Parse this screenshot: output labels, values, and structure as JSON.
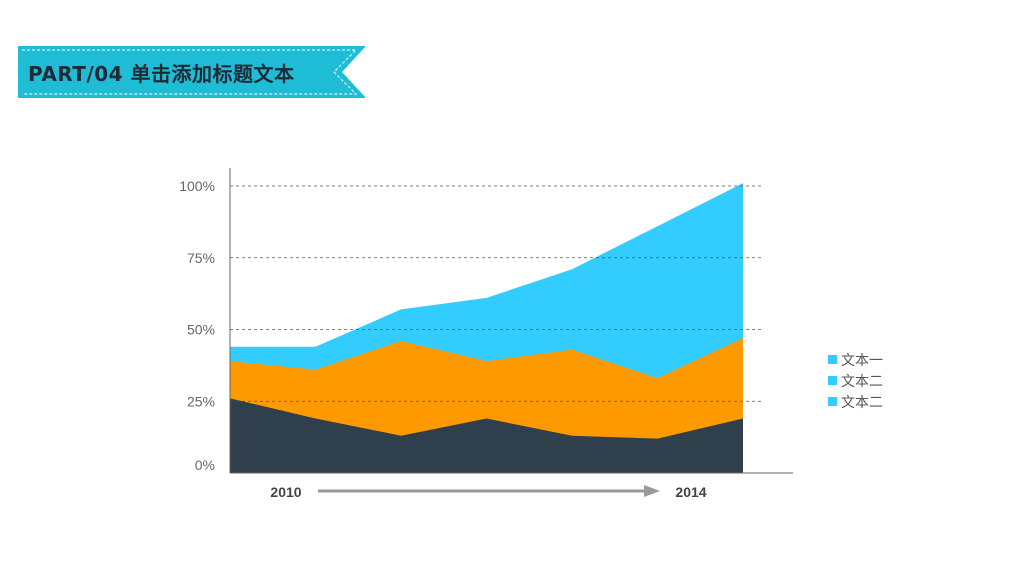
{
  "header": {
    "title": "PART/04 单击添加标题文本",
    "ribbon_color": "#1fbcd6"
  },
  "chart_data": {
    "type": "area",
    "stacked": false,
    "x": [
      1,
      2,
      3,
      4,
      5,
      6,
      7
    ],
    "ylim": [
      0,
      100
    ],
    "y_ticks": [
      "0%",
      "25%",
      "50%",
      "75%",
      "100%"
    ],
    "grid": "dashed-horizontal",
    "legend_position": "right",
    "series": [
      {
        "name": "文本一",
        "color": "#2f3f4c",
        "values": [
          26,
          19,
          13,
          19,
          13,
          12,
          19
        ]
      },
      {
        "name": "文本二",
        "color": "#ff9900",
        "values": [
          39,
          36,
          46,
          39,
          43,
          33,
          47
        ]
      },
      {
        "name": "文本二",
        "color": "#33ccff",
        "values": [
          44,
          44,
          57,
          61,
          71,
          86,
          101
        ]
      }
    ],
    "legend_colors": [
      "#33ccff",
      "#33ccff",
      "#33ccff"
    ],
    "timeline": {
      "start_label": "2010",
      "end_label": "2014",
      "arrow_color": "#999999"
    }
  }
}
